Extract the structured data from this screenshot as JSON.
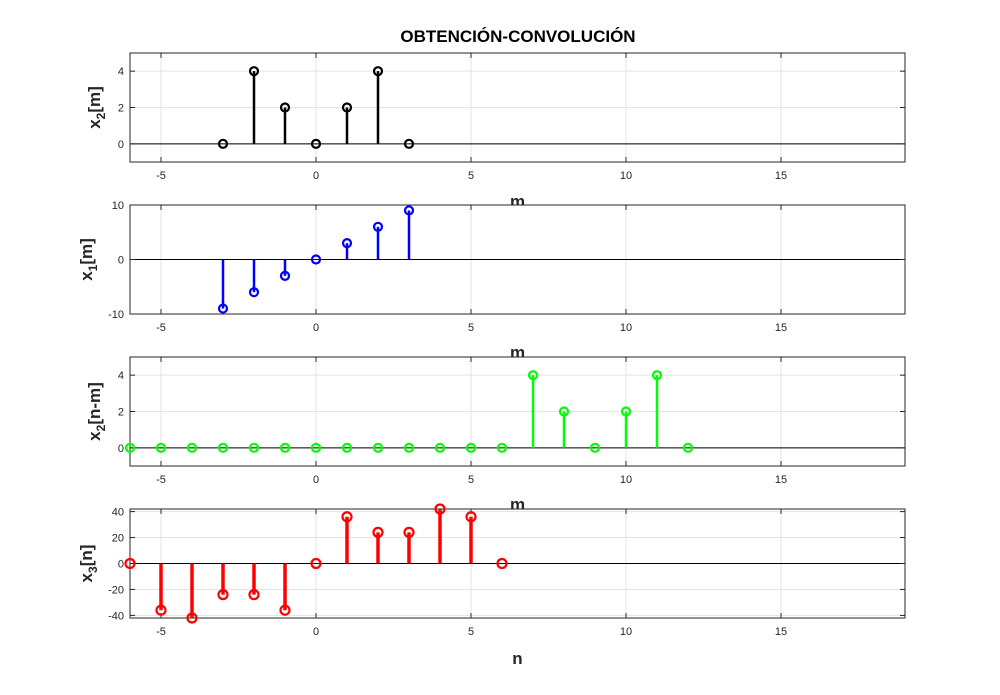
{
  "figure": {
    "title": "OBTENCIÓN-CONVOLUCIÓN"
  },
  "chart_data": [
    {
      "type": "stem",
      "ylabel_main": "x",
      "ylabel_sub": "2",
      "ylabel_rest": "[m]",
      "xlabel": "m",
      "color": "#000000",
      "marker_fill": "none",
      "xlim": [
        -6,
        19
      ],
      "ylim": [
        -1,
        5
      ],
      "xticks": [
        -5,
        0,
        5,
        10,
        15
      ],
      "yticks": [
        0,
        2,
        4
      ],
      "grid": true,
      "x": [
        -3,
        -2,
        -1,
        0,
        1,
        2,
        3
      ],
      "y": [
        0,
        4,
        2,
        0,
        2,
        4,
        0
      ]
    },
    {
      "type": "stem",
      "ylabel_main": "x",
      "ylabel_sub": "1",
      "ylabel_rest": "[m]",
      "xlabel": "m",
      "color": "#0000ff",
      "marker_fill": "none",
      "xlim": [
        -6,
        19
      ],
      "ylim": [
        -10,
        10
      ],
      "xticks": [
        -5,
        0,
        5,
        10,
        15
      ],
      "yticks": [
        -10,
        0,
        10
      ],
      "grid": true,
      "x": [
        -3,
        -2,
        -1,
        0,
        1,
        2,
        3
      ],
      "y": [
        -9,
        -6,
        -3,
        0,
        3,
        6,
        9
      ]
    },
    {
      "type": "stem",
      "ylabel_main": "x",
      "ylabel_sub": "2",
      "ylabel_rest": "[n-m]",
      "xlabel": "m",
      "color": "#00ff00",
      "marker_fill": "none",
      "xlim": [
        -6,
        19
      ],
      "ylim": [
        -1,
        5
      ],
      "xticks": [
        -5,
        0,
        5,
        10,
        15
      ],
      "yticks": [
        0,
        2,
        4
      ],
      "grid": true,
      "x": [
        -6,
        -5,
        -4,
        -3,
        -2,
        -1,
        0,
        1,
        2,
        3,
        4,
        5,
        6,
        7,
        8,
        9,
        10,
        11,
        12
      ],
      "y": [
        0,
        0,
        0,
        0,
        0,
        0,
        0,
        0,
        0,
        0,
        0,
        0,
        0,
        4,
        2,
        0,
        2,
        4,
        0
      ]
    },
    {
      "type": "stem",
      "ylabel_main": "x",
      "ylabel_sub": "3",
      "ylabel_rest": "[n]",
      "xlabel": "n",
      "color": "#ff0000",
      "marker_fill": "none",
      "xlim": [
        -6,
        19
      ],
      "ylim": [
        -42,
        42
      ],
      "xticks": [
        -5,
        0,
        5,
        10,
        15
      ],
      "yticks": [
        -40,
        -20,
        0,
        20,
        40
      ],
      "grid": true,
      "x": [
        -6,
        -5,
        -4,
        -3,
        -2,
        -1,
        0,
        1,
        2,
        3,
        4,
        5,
        6
      ],
      "y": [
        0,
        -36,
        -42,
        -24,
        -24,
        -36,
        0,
        36,
        24,
        24,
        42,
        36,
        0
      ]
    }
  ]
}
